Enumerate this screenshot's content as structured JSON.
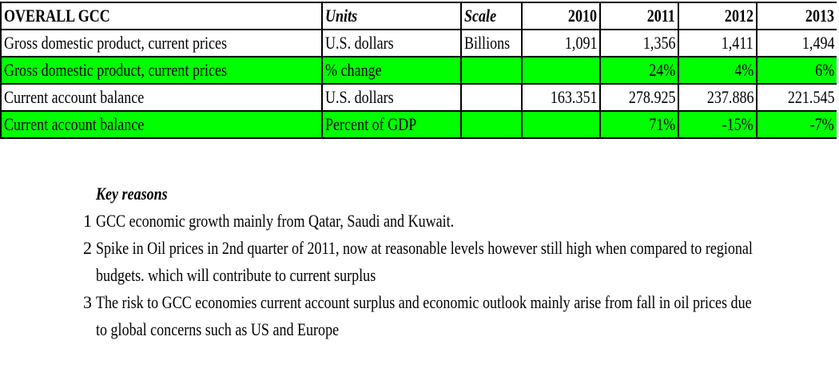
{
  "table": {
    "header": {
      "title": "OVERALL GCC",
      "units": "Units",
      "scale": "Scale",
      "years": [
        "2010",
        "2011",
        "2012",
        "2013"
      ]
    },
    "rows": [
      {
        "indicator": "Gross domestic product, current prices",
        "units": "U.S. dollars",
        "scale": "Billions",
        "values": [
          "1,091",
          "1,356",
          "1,411",
          "1,494"
        ],
        "highlight": false
      },
      {
        "indicator": "Gross domestic product, current prices",
        "units": "% change",
        "scale": "",
        "values": [
          "",
          "24%",
          "4%",
          "6%"
        ],
        "highlight": true
      },
      {
        "indicator": "Current account balance",
        "units": "U.S. dollars",
        "scale": "",
        "values": [
          "163.351",
          "278.925",
          "237.886",
          "221.545"
        ],
        "highlight": false
      },
      {
        "indicator": "Current account balance",
        "units": "Percent of GDP",
        "scale": "",
        "values": [
          "",
          "71%",
          "-15%",
          "-7%"
        ],
        "highlight": true
      }
    ],
    "highlight_color": "#00ff00"
  },
  "notes": {
    "heading": "Key reasons",
    "items": [
      {
        "num": "1",
        "lines": [
          "GCC economic growth mainly from Qatar, Saudi and Kuwait."
        ]
      },
      {
        "num": "2",
        "lines": [
          "Spike in Oil prices  in 2nd quarter of 2011, now at reasonable levels  however still high when compared to regional",
          "budgets. which will contribute to current surplus"
        ]
      },
      {
        "num": "3",
        "lines": [
          "The risk to GCC economies  current account surplus and economic outlook  mainly arise from fall in oil prices due",
          "to global concerns such as US and Europe"
        ]
      }
    ]
  }
}
